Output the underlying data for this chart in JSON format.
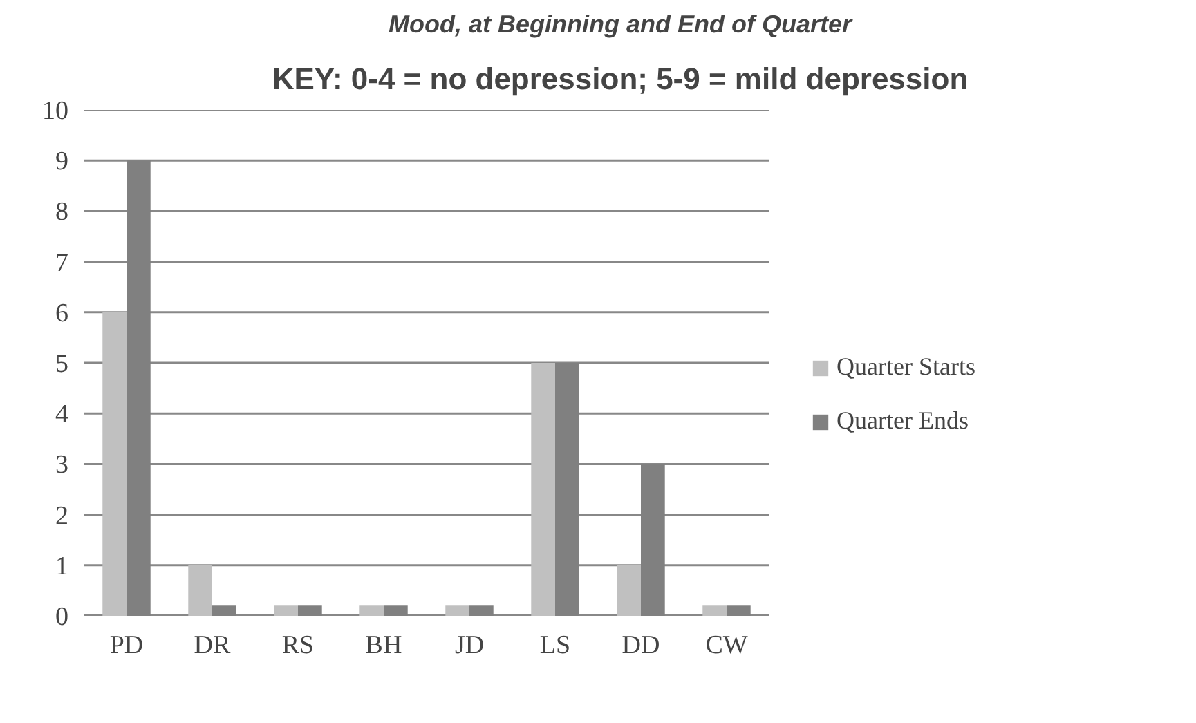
{
  "chart_data": {
    "type": "bar",
    "title": "Mood, at Beginning and End of Quarter",
    "subtitle": "KEY: 0-4 = no depression; 5-9 = mild depression",
    "categories": [
      "PD",
      "DR",
      "RS",
      "BH",
      "JD",
      "LS",
      "DD",
      "CW"
    ],
    "series": [
      {
        "name": "Quarter Starts",
        "color": "#c0c0c0",
        "values": [
          6,
          1,
          0.2,
          0.2,
          0.2,
          5,
          1,
          0.2
        ]
      },
      {
        "name": "Quarter Ends",
        "color": "#808080",
        "values": [
          9,
          0.2,
          0.2,
          0.2,
          0.2,
          5,
          3,
          0.2
        ]
      }
    ],
    "ylim": [
      0,
      10
    ],
    "yticks": [
      0,
      1,
      2,
      3,
      4,
      5,
      6,
      7,
      8,
      9,
      10
    ],
    "grid": "y",
    "legend": "right"
  }
}
